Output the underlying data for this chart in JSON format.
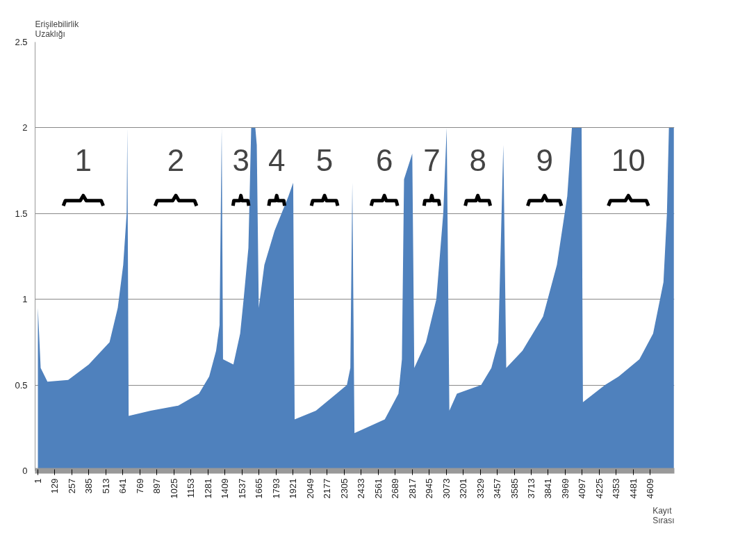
{
  "chart_data": {
    "type": "area",
    "xlabel": "Kayıt Sırası",
    "ylabel": "Erişilebilirlik Uzaklığı",
    "color": "#4f81bd",
    "x": [
      1,
      22,
      73,
      229,
      384,
      540,
      602,
      643,
      669,
      674,
      684,
      850,
      1057,
      1213,
      1290,
      1342,
      1368,
      1384,
      1394,
      1472,
      1523,
      1549,
      1585,
      1606,
      1637,
      1648,
      1663,
      1705,
      1782,
      1886,
      1922,
      1933,
      2093,
      2248,
      2326,
      2352,
      2367,
      2383,
      2611,
      2714,
      2740,
      2756,
      2818,
      2833,
      2921,
      2999,
      3051,
      3077,
      3097,
      3154,
      3336,
      3413,
      3465,
      3503,
      3525,
      3647,
      3802,
      3906,
      3984,
      4019,
      4092,
      4102,
      4268,
      4371,
      4527,
      4630,
      4708,
      4734,
      4749,
      4786
    ],
    "values": [
      0.95,
      0.6,
      0.52,
      0.53,
      0.62,
      0.75,
      0.95,
      1.2,
      1.5,
      2.0,
      0.32,
      0.35,
      0.38,
      0.45,
      0.55,
      0.7,
      0.85,
      2.0,
      0.65,
      0.62,
      0.8,
      1.0,
      1.3,
      2.0,
      2.0,
      1.9,
      0.95,
      1.2,
      1.4,
      1.6,
      1.68,
      0.3,
      0.35,
      0.45,
      0.5,
      0.6,
      1.68,
      0.22,
      0.3,
      0.45,
      0.65,
      1.7,
      1.85,
      0.6,
      0.75,
      1.0,
      1.5,
      2.0,
      0.35,
      0.45,
      0.5,
      0.6,
      0.75,
      1.9,
      0.6,
      0.7,
      0.9,
      1.2,
      1.6,
      2.0,
      2.0,
      0.4,
      0.5,
      0.55,
      0.65,
      0.8,
      1.1,
      1.5,
      2.0,
      2.0
    ],
    "xlim": [
      -20,
      4790
    ],
    "ylim": [
      0,
      2.5
    ],
    "xticks": [
      1,
      129,
      257,
      385,
      513,
      641,
      769,
      897,
      1025,
      1153,
      1281,
      1409,
      1537,
      1665,
      1793,
      1921,
      2049,
      2177,
      2305,
      2433,
      2561,
      2689,
      2817,
      2945,
      3073,
      3201,
      3329,
      3457,
      3585,
      3713,
      3841,
      3969,
      4097,
      4225,
      4353,
      4481,
      4609
    ],
    "yticks": [
      0,
      0.5,
      1,
      1.5,
      2,
      2.5
    ],
    "grid": "y",
    "annotations": [
      "1",
      "2",
      "3",
      "4",
      "5",
      "6",
      "7",
      "8",
      "9",
      "10"
    ]
  }
}
